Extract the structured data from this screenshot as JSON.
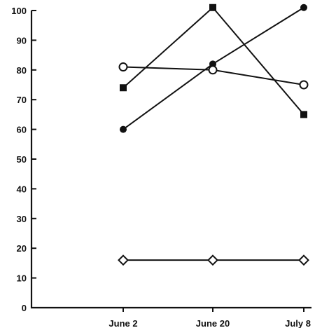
{
  "chart_data": {
    "type": "line",
    "title": "",
    "xlabel": "",
    "ylabel": "",
    "categories": [
      "June 2",
      "June 20",
      "July 8"
    ],
    "ylim": [
      0,
      100
    ],
    "yticks": [
      0,
      10,
      20,
      30,
      40,
      50,
      60,
      70,
      80,
      90,
      100
    ],
    "grid": false,
    "series": [
      {
        "marker": "filled-square",
        "values": [
          74,
          101,
          65
        ]
      },
      {
        "marker": "filled-circle",
        "values": [
          60,
          82,
          101
        ]
      },
      {
        "marker": "open-circle",
        "values": [
          81,
          80,
          75
        ]
      },
      {
        "marker": "open-diamond",
        "values": [
          16,
          16,
          16
        ]
      }
    ]
  }
}
